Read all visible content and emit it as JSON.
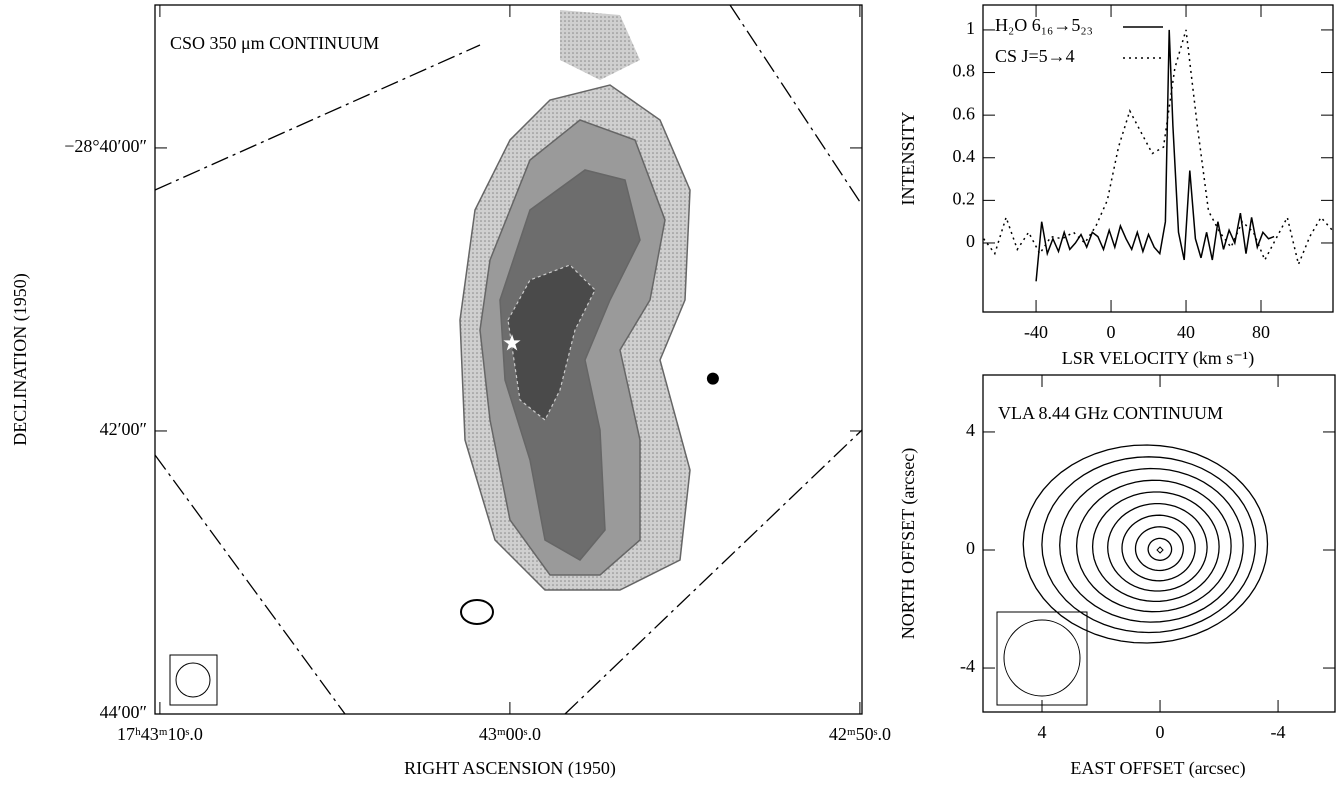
{
  "chart_data": [
    {
      "type": "image",
      "title": "CSO 350 μm CONTINUUM",
      "x_label": "RIGHT ASCENSION (1950)",
      "y_label": "DECLINATION (1950)",
      "xlim": [
        70.14,
        49.94
      ],
      "ylim": [
        -44,
        -38.99
      ],
      "xticks": [
        {
          "value": 70,
          "label": "17ʰ43ᵐ10ˢ.0"
        },
        {
          "value": 60,
          "label": "43ᵐ00ˢ.0"
        },
        {
          "value": 50,
          "label": "42ᵐ50ˢ.0"
        }
      ],
      "yticks": [
        {
          "value": -40,
          "label": "−28°40′00″"
        },
        {
          "value": -42,
          "label": "42′00″"
        },
        {
          "value": -44,
          "label": "44′00″"
        }
      ],
      "x": [
        59.94,
        54.2
      ],
      "values": [
        -41.38,
        -41.63
      ]
    },
    {
      "type": "line",
      "x_label": "LSR VELOCITY (km s⁻¹)",
      "y_label": "INTENSITY",
      "xlim": [
        -68.3,
        118.4
      ],
      "ylim": [
        -0.324,
        1.117
      ],
      "xticks": [
        -40,
        0,
        40,
        80
      ],
      "yticks": [
        0,
        0.2,
        0.4,
        0.6,
        0.8,
        1
      ],
      "series": [
        {
          "name": "H₂O 6₁₆→5₂₃",
          "color": "#000000",
          "style": "solid",
          "x": [
            -40,
            -37,
            -34,
            -31,
            -28,
            -25,
            -22,
            -19,
            -16,
            -13,
            -10,
            -7,
            -4,
            -1,
            2,
            5,
            8,
            11,
            14,
            17,
            20,
            23,
            26,
            29,
            31,
            33,
            36,
            39,
            42,
            45,
            48,
            51,
            54,
            57,
            60,
            63,
            66,
            69,
            72,
            75,
            78,
            81,
            84,
            87
          ],
          "values": [
            -0.18,
            0.1,
            -0.05,
            0.02,
            -0.04,
            0.05,
            -0.03,
            0.0,
            0.04,
            -0.02,
            0.05,
            0.03,
            -0.03,
            0.06,
            -0.02,
            0.08,
            0.02,
            -0.03,
            0.05,
            -0.04,
            0.04,
            -0.02,
            -0.05,
            0.1,
            1.0,
            0.55,
            0.05,
            -0.08,
            0.34,
            0.02,
            -0.07,
            0.05,
            -0.08,
            0.1,
            -0.03,
            0.06,
            0.0,
            0.14,
            -0.05,
            0.12,
            -0.02,
            0.05,
            0.02,
            0.03
          ]
        },
        {
          "name": "CS J=5→4",
          "color": "#000000",
          "style": "dotted",
          "x": [
            -68,
            -62,
            -56,
            -50,
            -44,
            -38,
            -32,
            -26,
            -20,
            -14,
            -8,
            -2,
            4,
            10,
            16,
            22,
            28,
            34,
            40,
            46,
            52,
            58,
            64,
            70,
            76,
            82,
            88,
            94,
            100,
            106,
            112,
            118
          ],
          "values": [
            0.02,
            -0.05,
            0.12,
            -0.03,
            0.05,
            -0.05,
            0.03,
            0.02,
            0.05,
            0.0,
            0.08,
            0.2,
            0.45,
            0.62,
            0.52,
            0.42,
            0.45,
            0.82,
            1.0,
            0.55,
            0.15,
            0.05,
            -0.02,
            0.1,
            0.05,
            -0.08,
            0.02,
            0.12,
            -0.1,
            0.03,
            0.12,
            0.06
          ]
        }
      ]
    },
    {
      "type": "contour",
      "title": "VLA 8.44 GHz CONTINUUM",
      "x_label": "EAST OFFSET (arcsec)",
      "y_label": "NORTH OFFSET (arcsec)",
      "xlim": [
        6,
        -5.93
      ],
      "ylim": [
        -5.49,
        5.93
      ],
      "xticks": [
        4,
        0,
        -4
      ],
      "yticks": [
        4,
        0,
        -4
      ]
    }
  ]
}
